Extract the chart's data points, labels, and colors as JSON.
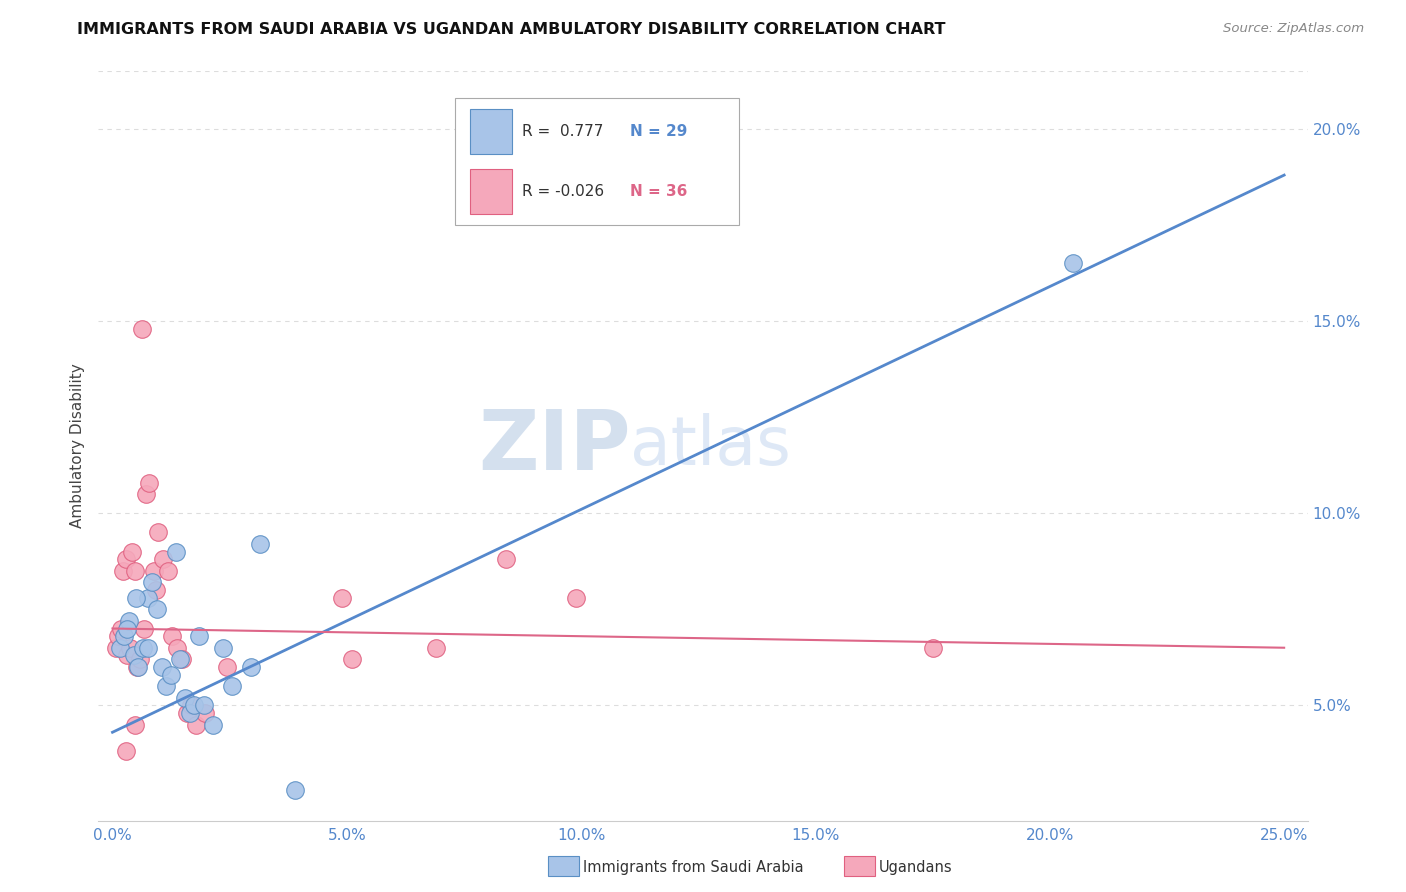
{
  "title": "IMMIGRANTS FROM SAUDI ARABIA VS UGANDAN AMBULATORY DISABILITY CORRELATION CHART",
  "source": "Source: ZipAtlas.com",
  "ylabel": "Ambulatory Disability",
  "legend_blue_R": "0.777",
  "legend_blue_N": "29",
  "legend_pink_R": "-0.026",
  "legend_pink_N": "36",
  "legend_blue_label": "Immigrants from Saudi Arabia",
  "legend_pink_label": "Ugandans",
  "blue_color": "#a8c4e8",
  "pink_color": "#f5a8bb",
  "blue_edge_color": "#5a8fc4",
  "pink_edge_color": "#e06080",
  "blue_line_color": "#5588cc",
  "pink_line_color": "#dd6688",
  "blue_scatter": [
    [
      0.15,
      6.5
    ],
    [
      0.25,
      6.8
    ],
    [
      0.35,
      7.2
    ],
    [
      0.45,
      6.3
    ],
    [
      0.55,
      6.0
    ],
    [
      0.65,
      6.5
    ],
    [
      0.75,
      7.8
    ],
    [
      0.85,
      8.2
    ],
    [
      0.95,
      7.5
    ],
    [
      1.05,
      6.0
    ],
    [
      1.15,
      5.5
    ],
    [
      1.25,
      5.8
    ],
    [
      1.35,
      9.0
    ],
    [
      1.45,
      6.2
    ],
    [
      1.55,
      5.2
    ],
    [
      1.65,
      4.8
    ],
    [
      1.75,
      5.0
    ],
    [
      1.85,
      6.8
    ],
    [
      1.95,
      5.0
    ],
    [
      2.15,
      4.5
    ],
    [
      2.35,
      6.5
    ],
    [
      2.55,
      5.5
    ],
    [
      2.95,
      6.0
    ],
    [
      3.15,
      9.2
    ],
    [
      3.9,
      2.8
    ],
    [
      0.5,
      7.8
    ],
    [
      0.3,
      7.0
    ],
    [
      20.5,
      16.5
    ],
    [
      0.75,
      6.5
    ]
  ],
  "pink_scatter": [
    [
      0.08,
      6.5
    ],
    [
      0.12,
      6.8
    ],
    [
      0.18,
      7.0
    ],
    [
      0.22,
      8.5
    ],
    [
      0.28,
      8.8
    ],
    [
      0.32,
      6.3
    ],
    [
      0.38,
      6.5
    ],
    [
      0.42,
      9.0
    ],
    [
      0.48,
      8.5
    ],
    [
      0.52,
      6.0
    ],
    [
      0.58,
      6.2
    ],
    [
      0.62,
      14.8
    ],
    [
      0.68,
      7.0
    ],
    [
      0.72,
      10.5
    ],
    [
      0.78,
      10.8
    ],
    [
      0.88,
      8.5
    ],
    [
      0.92,
      8.0
    ],
    [
      0.98,
      9.5
    ],
    [
      1.08,
      8.8
    ],
    [
      1.18,
      8.5
    ],
    [
      1.28,
      6.8
    ],
    [
      1.38,
      6.5
    ],
    [
      1.48,
      6.2
    ],
    [
      1.58,
      4.8
    ],
    [
      1.68,
      5.0
    ],
    [
      1.78,
      4.5
    ],
    [
      1.98,
      4.8
    ],
    [
      2.45,
      6.0
    ],
    [
      4.9,
      7.8
    ],
    [
      5.1,
      6.2
    ],
    [
      0.28,
      3.8
    ],
    [
      0.48,
      4.5
    ],
    [
      6.9,
      6.5
    ],
    [
      8.4,
      8.8
    ],
    [
      9.9,
      7.8
    ],
    [
      17.5,
      6.5
    ]
  ],
  "blue_trend_x": [
    0.0,
    25.0
  ],
  "blue_trend_y": [
    4.3,
    18.8
  ],
  "pink_trend_x": [
    0.0,
    25.0
  ],
  "pink_trend_y": [
    7.0,
    6.5
  ],
  "xlim": [
    0.0,
    25.0
  ],
  "ylim": [
    2.0,
    21.5
  ],
  "xtick_vals": [
    0.0,
    5.0,
    10.0,
    15.0,
    20.0,
    25.0
  ],
  "ytick_vals": [
    5.0,
    10.0,
    15.0,
    20.0
  ],
  "tick_color": "#5588cc",
  "grid_color": "#dddddd",
  "watermark_zip": "ZIP",
  "watermark_atlas": "atlas"
}
